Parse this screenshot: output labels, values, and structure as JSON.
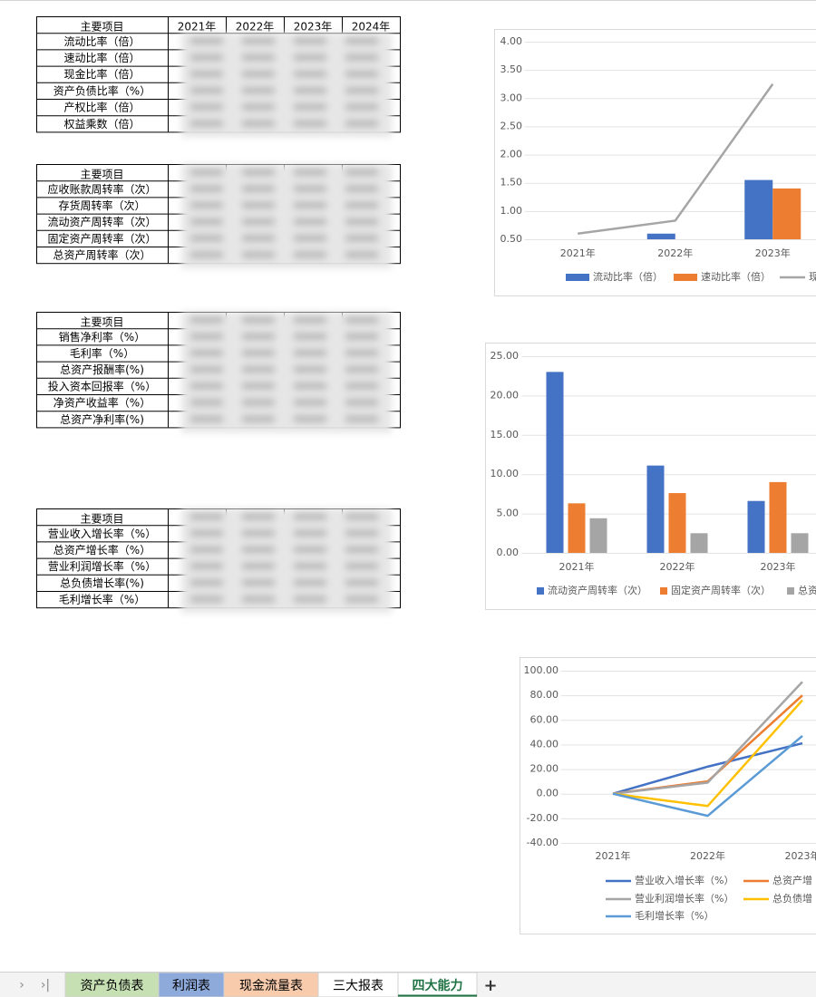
{
  "tables": [
    {
      "header": [
        "主要项目",
        "2021年",
        "2022年",
        "2023年",
        "2024年"
      ],
      "rows": [
        "流动比率（倍）",
        "速动比率（倍）",
        "现金比率（倍）",
        "资产负债比率（%）",
        "产权比率（倍）",
        "权益乘数（倍）"
      ]
    },
    {
      "header": [
        "主要项目"
      ],
      "rows": [
        "应收账款周转率（次）",
        "存货周转率（次）",
        "流动资产周转率（次）",
        "固定资产周转率（次）",
        "总资产周转率（次）"
      ]
    },
    {
      "header": [
        "主要项目"
      ],
      "rows": [
        "销售净利率（%）",
        "毛利率（%）",
        "总资产报酬率(%)",
        "投入资本回报率（%）",
        "净资产收益率（%）",
        "总资产净利率(%)"
      ]
    },
    {
      "header": [
        "主要项目"
      ],
      "rows": [
        "营业收入增长率（%）",
        "总资产增长率（%）",
        "营业利润增长率（%）",
        "总负债增长率(%)",
        "毛利增长率（%）"
      ]
    }
  ],
  "charts": [
    {
      "type": "combo",
      "categories": [
        "2021年",
        "2022年",
        "2023年"
      ],
      "ylim": [
        0.5,
        4
      ],
      "yticks": [
        {
          "value": 0.5,
          "label": "0.50"
        },
        {
          "value": 1,
          "label": "1.00"
        },
        {
          "value": 1.5,
          "label": "1.50"
        },
        {
          "value": 2,
          "label": "2.00"
        },
        {
          "value": 2.5,
          "label": "2.50"
        },
        {
          "value": 3,
          "label": "3.00"
        },
        {
          "value": 3.5,
          "label": "3.50"
        },
        {
          "value": 4,
          "label": "4.00"
        }
      ],
      "grid": true,
      "series": [
        {
          "name": "流动比率（倍）",
          "type": "bar",
          "color": "#4472c4",
          "values": [
            null,
            0.6,
            1.55
          ]
        },
        {
          "name": "速动比率（倍）",
          "type": "bar",
          "color": "#ed7d31",
          "values": [
            null,
            null,
            1.4
          ]
        },
        {
          "name": "现",
          "type": "line",
          "color": "#a5a5a5",
          "values": [
            0.6,
            0.83,
            3.25
          ]
        }
      ]
    },
    {
      "type": "bar",
      "categories": [
        "2021年",
        "2022年",
        "2023年"
      ],
      "ylim": [
        0,
        25
      ],
      "yticks": [
        {
          "value": 0,
          "label": "0.00"
        },
        {
          "value": 5,
          "label": "5.00"
        },
        {
          "value": 10,
          "label": "10.00"
        },
        {
          "value": 15,
          "label": "15.00"
        },
        {
          "value": 20,
          "label": "20.00"
        },
        {
          "value": 25,
          "label": "25.00"
        }
      ],
      "grid": true,
      "series": [
        {
          "name": "流动资产周转率（次）",
          "type": "bar",
          "color": "#4472c4",
          "values": [
            23,
            11.1,
            6.6
          ]
        },
        {
          "name": "固定资产周转率（次）",
          "type": "bar",
          "color": "#ed7d31",
          "values": [
            6.3,
            7.6,
            9
          ]
        },
        {
          "name": "总资",
          "type": "bar",
          "color": "#a5a5a5",
          "values": [
            4.4,
            2.5,
            2.5
          ]
        }
      ]
    },
    {
      "type": "line",
      "categories": [
        "2021年",
        "2022年",
        "2023年"
      ],
      "ylim": [
        -40,
        100
      ],
      "yticks": [
        {
          "value": -40,
          "label": "-40.00"
        },
        {
          "value": -20,
          "label": "-20.00"
        },
        {
          "value": 0,
          "label": "0.00"
        },
        {
          "value": 20,
          "label": "20.00"
        },
        {
          "value": 40,
          "label": "40.00"
        },
        {
          "value": 60,
          "label": "60.00"
        },
        {
          "value": 80,
          "label": "80.00"
        },
        {
          "value": 100,
          "label": "100.00"
        }
      ],
      "grid": true,
      "series": [
        {
          "name": "营业收入增长率（%）",
          "type": "line",
          "color": "#4472c4",
          "values": [
            0,
            22,
            41
          ]
        },
        {
          "name": "总资产增",
          "type": "line",
          "color": "#ed7d31",
          "values": [
            0,
            10,
            80
          ]
        },
        {
          "name": "营业利润增长率（%）",
          "type": "line",
          "color": "#a5a5a5",
          "values": [
            0,
            9,
            91
          ]
        },
        {
          "name": "总负债增",
          "type": "line",
          "color": "#ffc000",
          "values": [
            0,
            -10,
            76
          ]
        },
        {
          "name": "毛利增长率（%）",
          "type": "line",
          "color": "#5b9bd5",
          "values": [
            0,
            -18,
            47
          ]
        }
      ]
    }
  ],
  "sheet_tabs": [
    "资产负债表",
    "利润表",
    "现金流量表",
    "三大报表",
    "四大能力"
  ],
  "active_tab": 4
}
